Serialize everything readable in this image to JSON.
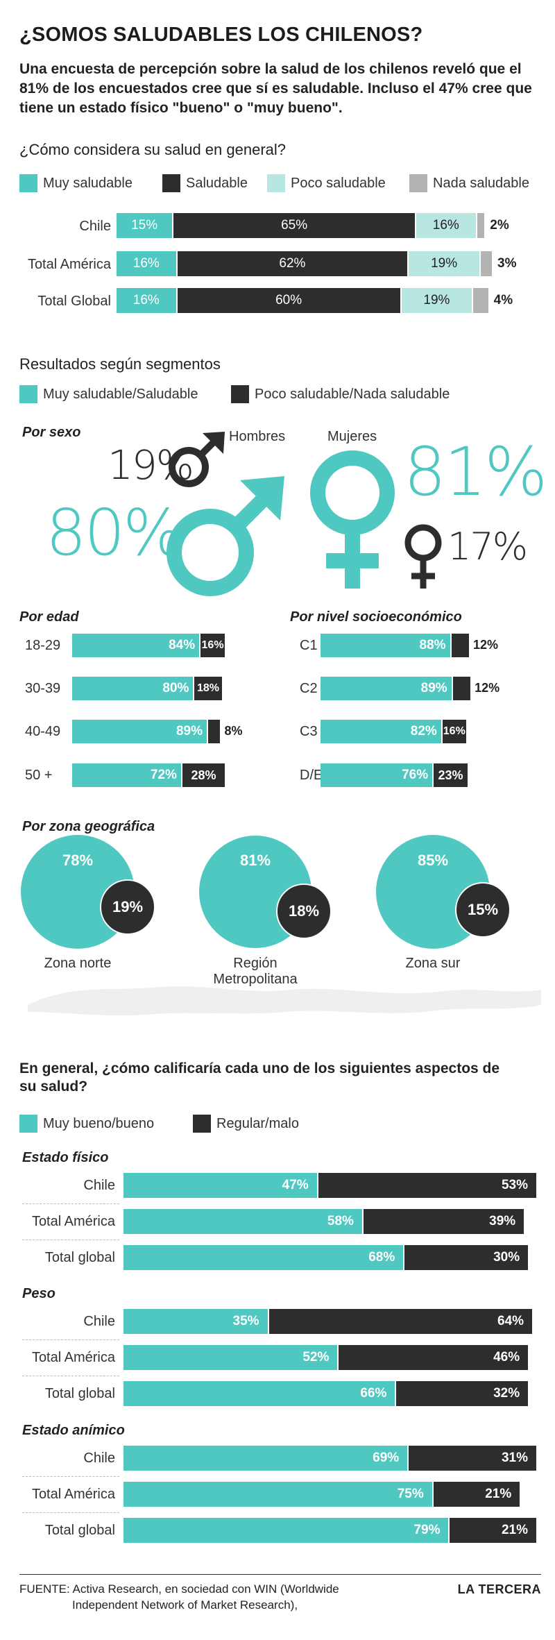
{
  "header": {
    "title": "¿SOMOS SALUDABLES LOS CHILENOS?",
    "intro": "Una encuesta de percepción sobre la salud de los chilenos reveló que el 81% de los encuestados cree que sí es saludable. Incluso el 47% cree que tiene un estado físico \"bueno\" o \"muy bueno\"."
  },
  "colors": {
    "teal": "#4ec8c0",
    "dark": "#2d2d2d",
    "light_teal": "#b8e6e1",
    "grey": "#b3b3b3"
  },
  "section1": {
    "question": "¿Cómo considera su salud en general?",
    "legend": [
      "Muy saludable",
      "Saludable",
      "Poco saludable",
      "Nada saludable"
    ]
  },
  "section2": {
    "title": "Resultados según segmentos",
    "legend": [
      "Muy saludable/Saludable",
      "Poco saludable/Nada saludable"
    ],
    "sexo": {
      "label": "Por sexo",
      "hombres_label": "Hombres",
      "mujeres_label": "Mujeres",
      "hombres_saludable": "80%",
      "hombres_no": "19%",
      "mujeres_saludable": "81%",
      "mujeres_no": "17%"
    },
    "edad_label": "Por edad",
    "nse_label": "Por nivel socioeconómico",
    "zona_label": "Por zona geográfica"
  },
  "section3": {
    "question": "En general, ¿cómo calificaría cada uno de los siguientes aspectos de su salud?",
    "legend": [
      "Muy bueno/bueno",
      "Regular/malo"
    ],
    "groups": [
      "Estado físico",
      "Peso",
      "Estado anímico"
    ]
  },
  "footer": {
    "source_line1": "FUENTE: Activa Research, en sociedad con WIN (Worldwide",
    "source_line2": "Independent Network of Market Research),",
    "brand": "LA TERCERA"
  },
  "chart_data": [
    {
      "type": "bar",
      "stacked": true,
      "orientation": "horizontal",
      "title": "¿Cómo considera su salud en general?",
      "categories": [
        "Chile",
        "Total América",
        "Total Global"
      ],
      "series": [
        {
          "name": "Muy saludable",
          "values": [
            15,
            16,
            16
          ],
          "labels": [
            "15%",
            "16%",
            "16%"
          ]
        },
        {
          "name": "Saludable",
          "values": [
            65,
            62,
            60
          ],
          "labels": [
            "65%",
            "62%",
            "60%"
          ]
        },
        {
          "name": "Poco saludable",
          "values": [
            16,
            19,
            19
          ],
          "labels": [
            "16%",
            "19%",
            "19%"
          ]
        },
        {
          "name": "Nada saludable",
          "values": [
            2,
            3,
            4
          ],
          "labels": [
            "2%",
            "3%",
            "4%"
          ]
        }
      ]
    },
    {
      "type": "bar",
      "stacked": true,
      "orientation": "horizontal",
      "title": "Por edad",
      "categories": [
        "18-29",
        "30-39",
        "40-49",
        "50 +"
      ],
      "series": [
        {
          "name": "Muy saludable/Saludable",
          "values": [
            84,
            80,
            89,
            72
          ],
          "labels": [
            "84%",
            "80%",
            "89%",
            "72%"
          ]
        },
        {
          "name": "Poco saludable/Nada saludable",
          "values": [
            16,
            18,
            8,
            28
          ],
          "labels": [
            "16%",
            "18%",
            "8%",
            "28%"
          ]
        }
      ]
    },
    {
      "type": "bar",
      "stacked": true,
      "orientation": "horizontal",
      "title": "Por nivel socioeconómico",
      "categories": [
        "C1",
        "C2",
        "C3",
        "D/E"
      ],
      "series": [
        {
          "name": "Muy saludable/Saludable",
          "values": [
            88,
            89,
            82,
            76
          ],
          "labels": [
            "88%",
            "89%",
            "82%",
            "76%"
          ]
        },
        {
          "name": "Poco saludable/Nada saludable",
          "values": [
            12,
            12,
            16,
            23
          ],
          "labels": [
            "12%",
            "12%",
            "16%",
            "23%"
          ]
        }
      ]
    },
    {
      "type": "scatter",
      "title": "Por zona geográfica",
      "categories": [
        "Zona norte",
        "Región Metropolitana",
        "Zona sur"
      ],
      "series": [
        {
          "name": "Muy saludable/Saludable",
          "values": [
            78,
            81,
            85
          ],
          "labels": [
            "78%",
            "81%",
            "85%"
          ]
        },
        {
          "name": "Poco saludable/Nada saludable",
          "values": [
            19,
            18,
            15
          ],
          "labels": [
            "19%",
            "18%",
            "15%"
          ]
        }
      ]
    },
    {
      "type": "bar",
      "stacked": true,
      "orientation": "horizontal",
      "title": "Estado físico",
      "categories": [
        "Chile",
        "Total América",
        "Total global"
      ],
      "series": [
        {
          "name": "Muy bueno/bueno",
          "values": [
            47,
            58,
            68
          ],
          "labels": [
            "47%",
            "58%",
            "68%"
          ]
        },
        {
          "name": "Regular/malo",
          "values": [
            53,
            39,
            30
          ],
          "labels": [
            "53%",
            "39%",
            "30%"
          ]
        }
      ]
    },
    {
      "type": "bar",
      "stacked": true,
      "orientation": "horizontal",
      "title": "Peso",
      "categories": [
        "Chile",
        "Total América",
        "Total global"
      ],
      "series": [
        {
          "name": "Muy bueno/bueno",
          "values": [
            35,
            52,
            66
          ],
          "labels": [
            "35%",
            "52%",
            "66%"
          ]
        },
        {
          "name": "Regular/malo",
          "values": [
            64,
            46,
            32
          ],
          "labels": [
            "64%",
            "46%",
            "32%"
          ]
        }
      ]
    },
    {
      "type": "bar",
      "stacked": true,
      "orientation": "horizontal",
      "title": "Estado anímico",
      "categories": [
        "Chile",
        "Total América",
        "Total global"
      ],
      "series": [
        {
          "name": "Muy bueno/bueno",
          "values": [
            69,
            75,
            79
          ],
          "labels": [
            "69%",
            "75%",
            "79%"
          ]
        },
        {
          "name": "Regular/malo",
          "values": [
            31,
            21,
            21
          ],
          "labels": [
            "31%",
            "21%",
            "21%"
          ]
        }
      ]
    }
  ]
}
